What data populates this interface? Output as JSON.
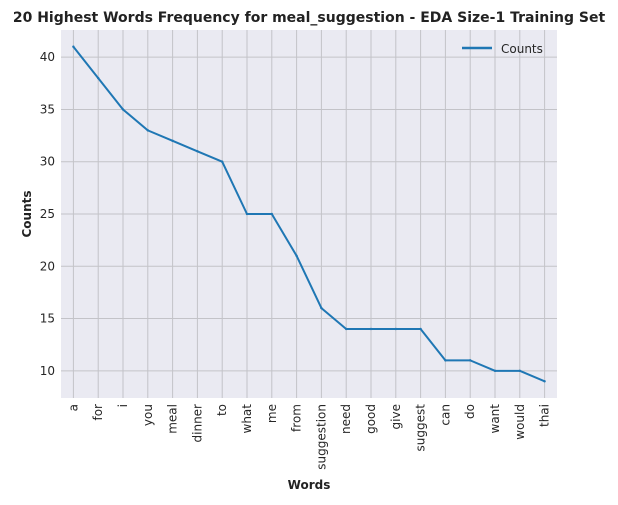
{
  "colors": {
    "plot_background": "#eaeaf2",
    "grid": "#c3c3c8",
    "line": "#1f77b4",
    "text": "#222222"
  },
  "chart_data": {
    "type": "line",
    "title": "20 Highest Words Frequency for meal_suggestion - EDA Size-1 Training Set",
    "xlabel": "Words",
    "ylabel": "Counts",
    "categories": [
      "a",
      "for",
      "i",
      "you",
      "meal",
      "dinner",
      "to",
      "what",
      "me",
      "from",
      "suggestion",
      "need",
      "good",
      "give",
      "suggest",
      "can",
      "do",
      "want",
      "would",
      "thai"
    ],
    "series": [
      {
        "name": "Counts",
        "values": [
          41,
          38,
          35,
          33,
          32,
          31,
          30,
          25,
          25,
          21,
          16,
          14,
          14,
          14,
          14,
          11,
          11,
          10,
          10,
          9
        ]
      }
    ],
    "yticks": [
      10,
      15,
      20,
      25,
      30,
      35,
      40
    ],
    "ylim": [
      7.4,
      42.6
    ],
    "grid": true,
    "legend": "top-right"
  }
}
